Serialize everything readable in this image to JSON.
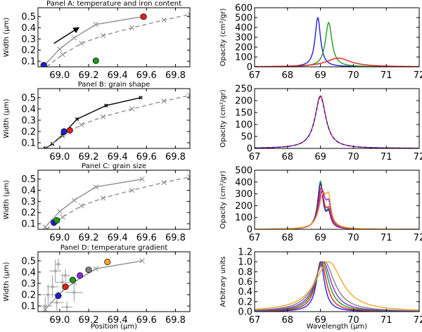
{
  "chart_data": [
    {
      "id": "A-left",
      "type": "scatter",
      "title": "Panel A: temperature and iron content",
      "ylabel": "Width (μm)",
      "xlim": [
        68.85,
        69.9
      ],
      "ylim": [
        0.05,
        0.58
      ],
      "xticks": [
        "69.0",
        "69.2",
        "69.4",
        "69.6",
        "69.8"
      ],
      "xtick_values": [
        69.0,
        69.2,
        69.4,
        69.6,
        69.8
      ],
      "yticks": [
        "0.1",
        "0.2",
        "0.3",
        "0.4",
        "0.5"
      ],
      "ytick_values": [
        0.1,
        0.2,
        0.3,
        0.4,
        0.5
      ],
      "series": [
        {
          "style": "solid-gray",
          "color": "#909090",
          "x": [
            68.9,
            69.0,
            69.1,
            69.25,
            69.57
          ],
          "y": [
            0.07,
            0.21,
            0.31,
            0.43,
            0.5
          ]
        },
        {
          "style": "dashed-gray",
          "color": "#909090",
          "x": [
            68.91,
            69.02,
            69.15,
            69.3,
            69.5,
            69.72,
            69.9
          ],
          "y": [
            0.05,
            0.16,
            0.26,
            0.33,
            0.4,
            0.47,
            0.52
          ]
        }
      ],
      "points": [
        {
          "x": 68.89,
          "y": 0.065,
          "color": "#1f1fd6"
        },
        {
          "x": 69.25,
          "y": 0.105,
          "color": "#1e9a1e"
        },
        {
          "x": 69.58,
          "y": 0.5,
          "color": "#e02020"
        }
      ],
      "arrow": {
        "x1": 68.96,
        "y1": 0.26,
        "x2": 69.13,
        "y2": 0.4
      }
    },
    {
      "id": "A-right",
      "type": "line",
      "ylabel": "Opacity (cm²/gr)",
      "xlim": [
        67,
        72
      ],
      "ylim": [
        0,
        600
      ],
      "xticks": [
        "67",
        "68",
        "69",
        "70",
        "71",
        "72"
      ],
      "xtick_values": [
        67,
        68,
        69,
        70,
        71,
        72
      ],
      "yticks": [
        "0",
        "100",
        "200",
        "300",
        "400",
        "500",
        "600"
      ],
      "ytick_values": [
        0,
        100,
        200,
        300,
        400,
        500,
        600
      ],
      "peaks": [
        {
          "color": "#1f1fd6",
          "center": 68.92,
          "height": 500,
          "width": 0.1,
          "dash": false
        },
        {
          "color": "#1e9a1e",
          "center": 69.25,
          "height": 450,
          "width": 0.12,
          "dash": false
        },
        {
          "color": "#e02020",
          "center": 69.55,
          "height": 88,
          "width": 0.45,
          "dash": false
        }
      ]
    },
    {
      "id": "B-left",
      "type": "scatter",
      "title": "Panel B: grain shape",
      "ylabel": "Width (μm)",
      "xlim": [
        68.85,
        69.9
      ],
      "ylim": [
        0.05,
        0.58
      ],
      "xticks": [
        "69.0",
        "69.2",
        "69.4",
        "69.6",
        "69.8"
      ],
      "xtick_values": [
        69.0,
        69.2,
        69.4,
        69.6,
        69.8
      ],
      "yticks": [
        "0.1",
        "0.2",
        "0.3",
        "0.4",
        "0.5"
      ],
      "ytick_values": [
        0.1,
        0.2,
        0.3,
        0.4,
        0.5
      ],
      "series": [
        {
          "style": "solid-black",
          "color": "#000000",
          "x": [
            68.9,
            68.95,
            69.02,
            69.12,
            69.32,
            69.56
          ],
          "y": [
            0.05,
            0.09,
            0.17,
            0.31,
            0.43,
            0.5
          ]
        },
        {
          "style": "dashed-gray",
          "color": "#909090",
          "x": [
            68.91,
            69.02,
            69.15,
            69.3,
            69.5,
            69.72,
            69.9
          ],
          "y": [
            0.05,
            0.16,
            0.26,
            0.33,
            0.4,
            0.47,
            0.52
          ]
        }
      ],
      "points": [
        {
          "x": 69.03,
          "y": 0.2,
          "color": "#1f1fd6"
        },
        {
          "x": 69.07,
          "y": 0.21,
          "color": "#e02020"
        }
      ]
    },
    {
      "id": "B-right",
      "type": "line",
      "ylabel": "Opacity (cm²/gr)",
      "xlim": [
        67,
        72
      ],
      "ylim": [
        0,
        250
      ],
      "xticks": [
        "67",
        "68",
        "69",
        "70",
        "71",
        "72"
      ],
      "xtick_values": [
        67,
        68,
        69,
        70,
        71,
        72
      ],
      "yticks": [
        "0",
        "50",
        "100",
        "150",
        "200",
        "250"
      ],
      "ytick_values": [
        0,
        50,
        100,
        150,
        200,
        250
      ],
      "peaks": [
        {
          "color": "#e02020",
          "center": 69.0,
          "height": 220,
          "width": 0.2,
          "dash": false
        },
        {
          "color": "#1f1fd6",
          "center": 69.0,
          "height": 215,
          "width": 0.2,
          "dash": true
        }
      ]
    },
    {
      "id": "C-left",
      "type": "scatter",
      "title": "Panel C: grain size",
      "ylabel": "Width (μm)",
      "xlim": [
        68.85,
        69.9
      ],
      "ylim": [
        0.05,
        0.58
      ],
      "xticks": [
        "69.0",
        "69.2",
        "69.4",
        "69.6",
        "69.8"
      ],
      "xtick_values": [
        69.0,
        69.2,
        69.4,
        69.6,
        69.8
      ],
      "yticks": [
        "0.1",
        "0.2",
        "0.3",
        "0.4",
        "0.5"
      ],
      "ytick_values": [
        0.1,
        0.2,
        0.3,
        0.4,
        0.5
      ],
      "series": [
        {
          "style": "solid-gray",
          "color": "#909090",
          "x": [
            68.9,
            69.0,
            69.1,
            69.25,
            69.57
          ],
          "y": [
            0.07,
            0.21,
            0.31,
            0.43,
            0.5
          ]
        },
        {
          "style": "dashed-gray",
          "color": "#909090",
          "x": [
            68.91,
            69.02,
            69.15,
            69.3,
            69.5,
            69.72,
            69.9
          ],
          "y": [
            0.05,
            0.16,
            0.26,
            0.33,
            0.4,
            0.47,
            0.52
          ]
        }
      ],
      "points": [
        {
          "x": 68.96,
          "y": 0.11,
          "color": "#1f1fd6"
        },
        {
          "x": 68.98,
          "y": 0.13,
          "color": "#1e9a1e"
        }
      ]
    },
    {
      "id": "C-right",
      "type": "line",
      "ylabel": "Opacity (cm²/gr)",
      "xlim": [
        67,
        72
      ],
      "ylim": [
        0,
        500
      ],
      "xticks": [
        "67",
        "68",
        "69",
        "70",
        "71",
        "72"
      ],
      "xtick_values": [
        67,
        68,
        69,
        70,
        71,
        72
      ],
      "yticks": [
        "0",
        "100",
        "200",
        "300",
        "400",
        "500"
      ],
      "ytick_values": [
        0,
        100,
        200,
        300,
        400,
        500
      ],
      "peaks": [
        {
          "color": "#1e9a1e",
          "center": 69.0,
          "height": 395,
          "width": 0.1,
          "dash": false
        },
        {
          "color": "#1f1fd6",
          "center": 69.0,
          "height": 375,
          "width": 0.1,
          "dash": false
        },
        {
          "color": "#e02020",
          "center": 69.02,
          "height": 340,
          "width": 0.11,
          "dash": false
        },
        {
          "color": "#8a2be2",
          "center": 69.05,
          "height": 310,
          "width": 0.13,
          "dash": false
        },
        {
          "color": "#f5a623",
          "center": 69.08,
          "height": 280,
          "width": 0.15,
          "dash": false
        }
      ],
      "shoulder": {
        "center": 69.25,
        "height_factor": 0.75,
        "width": 0.08
      }
    },
    {
      "id": "D-left",
      "type": "scatter",
      "title": "Panel D: temperature gradient",
      "ylabel": "Width (μm)",
      "xlabel": "Position (μm)",
      "xlim": [
        68.85,
        69.9
      ],
      "ylim": [
        0.05,
        0.58
      ],
      "xticks": [
        "69.0",
        "69.2",
        "69.4",
        "69.6",
        "69.8"
      ],
      "xtick_values": [
        69.0,
        69.2,
        69.4,
        69.6,
        69.8
      ],
      "yticks": [
        "0.1",
        "0.2",
        "0.3",
        "0.4",
        "0.5"
      ],
      "ytick_values": [
        0.1,
        0.2,
        0.3,
        0.4,
        0.5
      ],
      "series": [
        {
          "style": "solid-gray",
          "color": "#909090",
          "x": [
            68.9,
            69.0,
            69.1,
            69.25,
            69.57
          ],
          "y": [
            0.07,
            0.21,
            0.31,
            0.43,
            0.5
          ]
        }
      ],
      "errorbars": [
        {
          "x": 68.9,
          "y": 0.1,
          "ex": 0.05,
          "ey": 0.08
        },
        {
          "x": 68.92,
          "y": 0.2,
          "ex": 0.06,
          "ey": 0.09
        },
        {
          "x": 68.95,
          "y": 0.27,
          "ex": 0.04,
          "ey": 0.1
        },
        {
          "x": 68.97,
          "y": 0.41,
          "ex": 0.04,
          "ey": 0.1
        },
        {
          "x": 68.98,
          "y": 0.13,
          "ex": 0.05,
          "ey": 0.07
        },
        {
          "x": 69.02,
          "y": 0.31,
          "ex": 0.05,
          "ey": 0.08
        },
        {
          "x": 69.04,
          "y": 0.37,
          "ex": 0.03,
          "ey": 0.06
        },
        {
          "x": 69.1,
          "y": 0.22,
          "ex": 0.06,
          "ey": 0.08
        },
        {
          "x": 69.05,
          "y": 0.09,
          "ex": 0.04,
          "ey": 0.05
        },
        {
          "x": 68.99,
          "y": 0.47,
          "ex": 0.02,
          "ey": 0.05
        }
      ],
      "points": [
        {
          "x": 68.99,
          "y": 0.19,
          "color": "#1f1fd6"
        },
        {
          "x": 69.04,
          "y": 0.27,
          "color": "#e02020"
        },
        {
          "x": 69.09,
          "y": 0.33,
          "color": "#1e9a1e"
        },
        {
          "x": 69.14,
          "y": 0.37,
          "color": "#8a2be2"
        },
        {
          "x": 69.2,
          "y": 0.42,
          "color": "#808080"
        },
        {
          "x": 69.33,
          "y": 0.49,
          "color": "#f5a623"
        }
      ]
    },
    {
      "id": "D-right",
      "type": "line",
      "ylabel": "Arbitrary units",
      "xlabel": "Wavelength (μm)",
      "xlim": [
        67,
        72
      ],
      "ylim": [
        0,
        1.2
      ],
      "xticks": [
        "67",
        "68",
        "69",
        "70",
        "71",
        "72"
      ],
      "xtick_values": [
        67,
        68,
        69,
        70,
        71,
        72
      ],
      "yticks": [
        "0.0",
        "0.2",
        "0.4",
        "0.6",
        "0.8",
        "1.0",
        "1.2"
      ],
      "ytick_values": [
        0.0,
        0.2,
        0.4,
        0.6,
        0.8,
        1.0,
        1.2
      ],
      "peaks": [
        {
          "color": "#1f1fd6",
          "center": 69.0,
          "height": 1.0,
          "width": 0.15,
          "dash": false
        },
        {
          "color": "#e02020",
          "center": 69.02,
          "height": 1.0,
          "width": 0.2,
          "dash": false
        },
        {
          "color": "#1e9a1e",
          "center": 69.05,
          "height": 1.0,
          "width": 0.25,
          "dash": false
        },
        {
          "color": "#8a2be2",
          "center": 69.08,
          "height": 1.0,
          "width": 0.3,
          "dash": false
        },
        {
          "color": "#808080",
          "center": 69.12,
          "height": 1.0,
          "width": 0.37,
          "dash": false
        },
        {
          "color": "#f5a623",
          "center": 69.25,
          "height": 1.0,
          "width": 0.5,
          "dash": false
        }
      ]
    }
  ]
}
